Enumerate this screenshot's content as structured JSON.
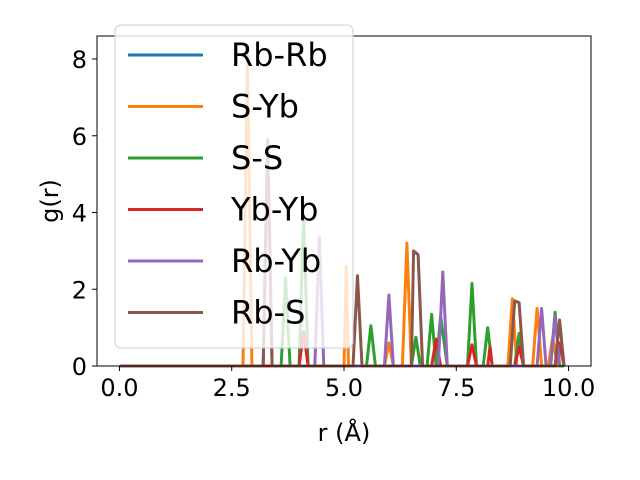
{
  "chart_data": {
    "type": "line",
    "xlabel": "r (Å)",
    "ylabel": "g(r)",
    "xlim": [
      -0.5,
      10.5
    ],
    "ylim": [
      0,
      8.6
    ],
    "x_ticks": [
      "0.0",
      "2.5",
      "5.0",
      "7.5",
      "10.0"
    ],
    "y_ticks": [
      "0",
      "2",
      "4",
      "6",
      "8"
    ],
    "grid": false,
    "legend_position": "upper-left",
    "series": [
      {
        "name": "Rb-Rb",
        "color": "#1f77b4",
        "x": [
          0.0,
          9.8
        ],
        "y": [
          0.0,
          0.0
        ]
      },
      {
        "name": "S-Yb",
        "color": "#ff7f0e",
        "x": [
          0.0,
          2.75,
          2.85,
          2.95,
          5.0,
          5.05,
          5.1,
          5.9,
          6.0,
          6.1,
          6.3,
          6.4,
          6.5,
          8.65,
          8.75,
          8.85,
          9.2,
          9.3,
          9.4,
          9.55,
          9.65,
          9.75,
          9.85
        ],
        "y": [
          0.0,
          0.0,
          8.1,
          0.0,
          0.0,
          2.6,
          0.0,
          0.0,
          0.6,
          0.0,
          0.0,
          3.2,
          0.0,
          0.0,
          1.75,
          0.0,
          0.0,
          1.5,
          0.0,
          0.0,
          0.75,
          0.0,
          0.0
        ]
      },
      {
        "name": "S-S",
        "color": "#2ca02c",
        "x": [
          0.0,
          3.6,
          3.7,
          3.8,
          4.0,
          4.1,
          4.2,
          5.5,
          5.6,
          5.7,
          6.5,
          6.6,
          6.7,
          6.85,
          6.95,
          7.05,
          7.15,
          7.3,
          7.75,
          7.85,
          7.95,
          8.1,
          8.2,
          8.3,
          8.8,
          8.9,
          9.0,
          9.6,
          9.7,
          9.8,
          9.9
        ],
        "y": [
          0.0,
          0.0,
          2.3,
          0.0,
          0.0,
          3.9,
          0.0,
          0.0,
          1.05,
          0.0,
          0.0,
          0.75,
          0.0,
          0.0,
          1.35,
          0.0,
          1.3,
          0.0,
          0.0,
          2.15,
          0.0,
          0.0,
          1.0,
          0.0,
          0.0,
          0.85,
          0.0,
          0.0,
          1.4,
          0.0,
          0.0
        ]
      },
      {
        "name": "Yb-Yb",
        "color": "#d62728",
        "x": [
          0.0,
          3.3,
          3.45,
          4.0,
          4.1,
          4.2,
          6.95,
          7.05,
          7.15,
          7.75,
          7.85,
          7.95,
          8.2,
          8.25,
          8.3,
          8.8,
          8.9,
          9.0,
          9.7,
          9.8,
          9.9
        ],
        "y": [
          0.0,
          0.0,
          0.0,
          0.0,
          0.9,
          0.0,
          0.0,
          0.7,
          0.0,
          0.0,
          0.55,
          0.0,
          0.0,
          0.5,
          0.0,
          0.0,
          0.5,
          0.0,
          0.0,
          0.6,
          0.0
        ]
      },
      {
        "name": "Rb-Yb",
        "color": "#9467bd",
        "x": [
          0.0,
          3.2,
          3.3,
          3.4,
          4.35,
          4.45,
          4.55,
          5.9,
          6.0,
          6.1,
          7.1,
          7.2,
          7.3,
          9.3,
          9.4,
          9.5,
          9.6,
          9.7,
          9.8
        ],
        "y": [
          0.0,
          0.0,
          5.9,
          0.0,
          0.0,
          3.35,
          0.0,
          0.0,
          1.85,
          0.0,
          0.0,
          2.45,
          0.0,
          0.0,
          1.5,
          0.0,
          0.0,
          1.3,
          0.0
        ]
      },
      {
        "name": "Rb-S",
        "color": "#8c564b",
        "x": [
          0.0,
          3.2,
          3.3,
          3.4,
          5.2,
          5.3,
          5.4,
          6.5,
          6.55,
          6.65,
          6.75,
          8.7,
          8.8,
          8.9,
          9.0,
          9.7,
          9.8,
          9.9
        ],
        "y": [
          0.0,
          0.0,
          5.9,
          0.0,
          0.0,
          2.35,
          0.0,
          0.0,
          3.0,
          2.9,
          0.0,
          0.0,
          1.7,
          1.65,
          0.0,
          0.0,
          1.2,
          0.0
        ]
      }
    ]
  }
}
